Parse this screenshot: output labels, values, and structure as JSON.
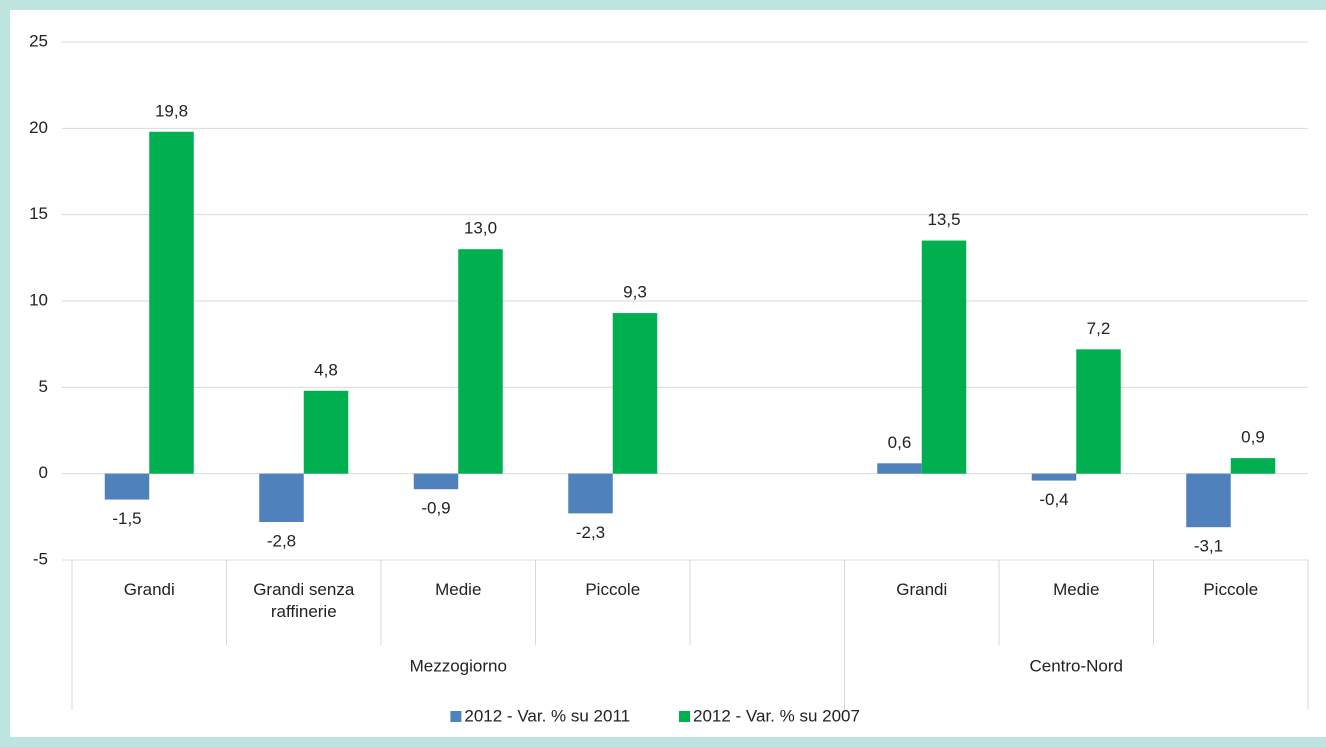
{
  "chart_data": {
    "type": "bar",
    "categories": [
      "Grandi",
      "Grandi senza raffinerie",
      "Medie",
      "Piccole",
      null,
      "Grandi",
      "Medie",
      "Piccole"
    ],
    "category_groups": [
      "Mezzogiorno",
      "Mezzogiorno",
      "Mezzogiorno",
      "Mezzogiorno",
      "Mezzogiorno",
      "Centro-Nord",
      "Centro-Nord",
      "Centro-Nord"
    ],
    "series": [
      {
        "name": "2012 - Var. % su 2011",
        "color": "#4f81bd",
        "values": [
          -1.5,
          -2.8,
          -0.9,
          -2.3,
          null,
          0.6,
          -0.4,
          -3.1
        ],
        "value_labels": [
          "-1,5",
          "-2,8",
          "-0,9",
          "-2,3",
          null,
          "0,6",
          "-0,4",
          "-3,1"
        ]
      },
      {
        "name": "2012 - Var. % su 2007",
        "color": "#00b050",
        "values": [
          19.8,
          4.8,
          13.0,
          9.3,
          null,
          13.5,
          7.2,
          0.9
        ],
        "value_labels": [
          "19,8",
          "4,8",
          "13,0",
          "9,3",
          null,
          "13,5",
          "7,2",
          "0,9"
        ]
      }
    ],
    "ylim": [
      -5,
      25
    ],
    "yticks": [
      -5,
      0,
      5,
      10,
      15,
      20,
      25
    ],
    "grid": true,
    "legend": "bottom"
  }
}
